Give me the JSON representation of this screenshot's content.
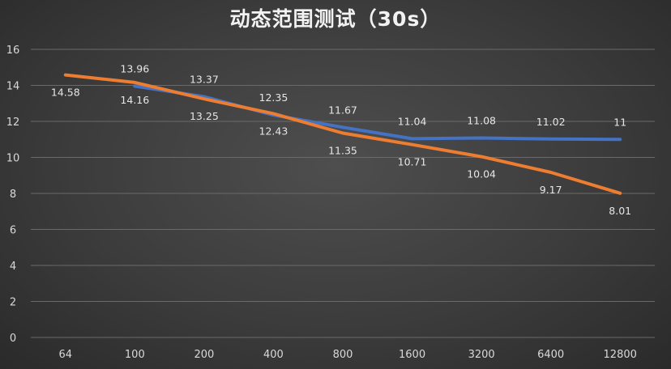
{
  "chart_data": {
    "type": "line",
    "title": "动态范围测试（30s）",
    "categories": [
      "64",
      "100",
      "200",
      "400",
      "800",
      "1600",
      "3200",
      "6400",
      "12800"
    ],
    "ylim": [
      0,
      16
    ],
    "yticks": [
      0,
      2,
      4,
      6,
      8,
      10,
      12,
      14,
      16
    ],
    "grid": true,
    "legend": "none",
    "series": [
      {
        "color": "#4472c4",
        "values": [
          null,
          13.96,
          13.37,
          12.35,
          11.67,
          11.04,
          11.08,
          11.02,
          11
        ],
        "labels": [
          "",
          "13.96",
          "13.37",
          "12.35",
          "11.67",
          "11.04",
          "11.08",
          "11.02",
          "11"
        ]
      },
      {
        "color": "#ed7d31",
        "values": [
          14.58,
          14.16,
          13.25,
          12.43,
          11.35,
          10.71,
          10.04,
          9.17,
          8.01
        ],
        "labels": [
          "14.58",
          "14.16",
          "13.25",
          "12.43",
          "11.35",
          "10.71",
          "10.04",
          "9.17",
          "8.01"
        ]
      }
    ]
  }
}
